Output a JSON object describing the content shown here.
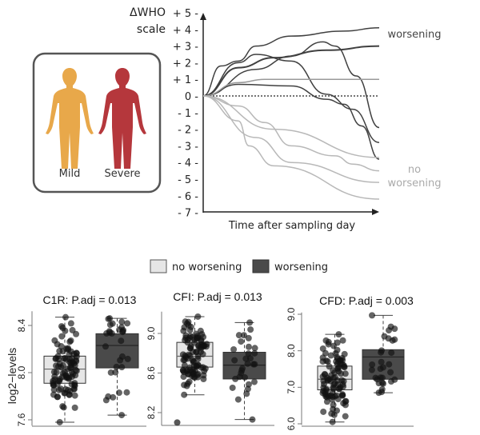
{
  "colors": {
    "mild": "#e8a84a",
    "severe": "#b5373c",
    "worsening": "#404040",
    "no_worsening": "#b8b8b8",
    "box_light": "#e6e6e6",
    "box_dark": "#4a4a4a"
  },
  "patients": {
    "mild_label": "Mild",
    "severe_label": "Severe"
  },
  "chart_data": [
    {
      "type": "line",
      "title": "",
      "ylabel": "ΔWHO scale",
      "ylabel_lines": [
        "ΔWHO",
        "scale"
      ],
      "xlabel": "Time after sampling day",
      "ylim": [
        -7,
        5
      ],
      "xlim": [
        0,
        10
      ],
      "yticks": [
        "+ 5 -",
        "+ 4 -",
        "+ 3 -",
        "+ 2 -",
        "+ 1 -",
        "0 -",
        "- 1 -",
        "- 2 -",
        "- 3 -",
        "- 4 -",
        "- 5 -",
        "- 6 -",
        "- 7 -"
      ],
      "ytick_values": [
        5,
        4,
        3,
        2,
        1,
        0,
        -1,
        -2,
        -3,
        -4,
        -5,
        -6,
        -7
      ],
      "annotations": {
        "worsening": "worsening",
        "no_worsening": [
          "no",
          "worsening"
        ]
      },
      "series": [
        {
          "group": "worsening",
          "points": [
            [
              0,
              0
            ],
            [
              1,
              1.8
            ],
            [
              2,
              2.1
            ],
            [
              3,
              3
            ],
            [
              5,
              3.6
            ],
            [
              8,
              3.9
            ],
            [
              10,
              4.1
            ]
          ]
        },
        {
          "group": "worsening",
          "bold": true,
          "points": [
            [
              0,
              0
            ],
            [
              2,
              1.7
            ],
            [
              4,
              2.3
            ],
            [
              7,
              2.75
            ],
            [
              10,
              3
            ]
          ]
        },
        {
          "group": "worsening",
          "points": [
            [
              0,
              0
            ],
            [
              3,
              1.6
            ],
            [
              5,
              2.4
            ],
            [
              6.8,
              3.25
            ],
            [
              7.5,
              3
            ],
            [
              8.7,
              1.2
            ],
            [
              10,
              -1.9
            ]
          ]
        },
        {
          "group": "worsening",
          "points": [
            [
              0,
              0
            ],
            [
              2,
              2
            ],
            [
              3,
              2.5
            ],
            [
              5,
              2.1
            ],
            [
              7,
              0.1
            ],
            [
              8.5,
              -0.8
            ],
            [
              10,
              -2.8
            ]
          ]
        },
        {
          "group": "worsening",
          "points": [
            [
              0,
              0
            ],
            [
              2,
              0.7
            ],
            [
              5,
              0.6
            ],
            [
              7,
              -0.2
            ],
            [
              8,
              -0.5
            ],
            [
              9,
              -1.8
            ],
            [
              10,
              -3.8
            ]
          ]
        },
        {
          "group": "neutral",
          "points": [
            [
              0,
              0
            ],
            [
              2,
              0.8
            ],
            [
              3.5,
              1
            ],
            [
              10,
              1
            ]
          ]
        },
        {
          "group": "no_worsening",
          "points": [
            [
              0,
              0
            ],
            [
              4,
              -2
            ],
            [
              10,
              -3.7
            ]
          ]
        },
        {
          "group": "no_worsening",
          "points": [
            [
              0,
              0
            ],
            [
              2,
              -0.6
            ],
            [
              3.5,
              -1.6
            ],
            [
              5,
              -3
            ],
            [
              7.5,
              -3.6
            ],
            [
              8.5,
              -4.1
            ],
            [
              10,
              -4.5
            ]
          ]
        },
        {
          "group": "no_worsening",
          "points": [
            [
              0,
              0
            ],
            [
              3,
              -2.5
            ],
            [
              5,
              -4
            ],
            [
              10,
              -5.2
            ]
          ]
        },
        {
          "group": "no_worsening",
          "points": [
            [
              0,
              0
            ],
            [
              2,
              -1.5
            ],
            [
              2.6,
              -3
            ],
            [
              4,
              -4.2
            ],
            [
              10,
              -6.2
            ]
          ]
        }
      ]
    },
    {
      "type": "box",
      "title": "C1R: P.adj = 0.013",
      "ylabel": "log2−levels",
      "ylim": [
        7.55,
        8.52
      ],
      "yticks": [
        7.6,
        8.0,
        8.4
      ],
      "ytick_labels": [
        "7.6",
        "8.0",
        "8.4"
      ],
      "groups": [
        {
          "name": "no worsening",
          "min": 7.58,
          "q1": 7.91,
          "median": 8.03,
          "q3": 8.14,
          "max": 8.47,
          "n": 100
        },
        {
          "name": "worsening",
          "min": 7.64,
          "q1": 8.04,
          "median": 8.23,
          "q3": 8.33,
          "max": 8.46,
          "n": 30
        }
      ]
    },
    {
      "type": "box",
      "title": "CFI: P.adj = 0.013",
      "ylabel": "",
      "ylim": [
        8.07,
        9.22
      ],
      "yticks": [
        8.2,
        8.6,
        9.0
      ],
      "ytick_labels": [
        "8.2",
        "8.6",
        "9.0"
      ],
      "groups": [
        {
          "name": "no worsening",
          "min": 8.38,
          "q1": 8.66,
          "median": 8.77,
          "q3": 8.91,
          "max": 9.17,
          "n": 100,
          "outliers": [
            8.1
          ]
        },
        {
          "name": "worsening",
          "min": 8.13,
          "q1": 8.54,
          "median": 8.68,
          "q3": 8.81,
          "max": 9.11,
          "n": 30
        }
      ]
    },
    {
      "type": "box",
      "title": "CFD: P.adj = 0.003",
      "ylabel": "",
      "ylim": [
        5.97,
        9.05
      ],
      "yticks": [
        6.0,
        7.0,
        8.0,
        9.0
      ],
      "ytick_labels": [
        "6.0",
        "7.0",
        "8.0",
        "9.0"
      ],
      "groups": [
        {
          "name": "no worsening",
          "min": 6.05,
          "q1": 6.93,
          "median": 7.22,
          "q3": 7.58,
          "max": 8.45,
          "n": 100
        },
        {
          "name": "worsening",
          "min": 6.85,
          "q1": 7.22,
          "median": 7.83,
          "q3": 8.03,
          "max": 8.97,
          "n": 30
        }
      ]
    }
  ],
  "legend": [
    {
      "label": "no worsening",
      "color": "#e6e6e6"
    },
    {
      "label": "worsening",
      "color": "#4a4a4a"
    }
  ]
}
